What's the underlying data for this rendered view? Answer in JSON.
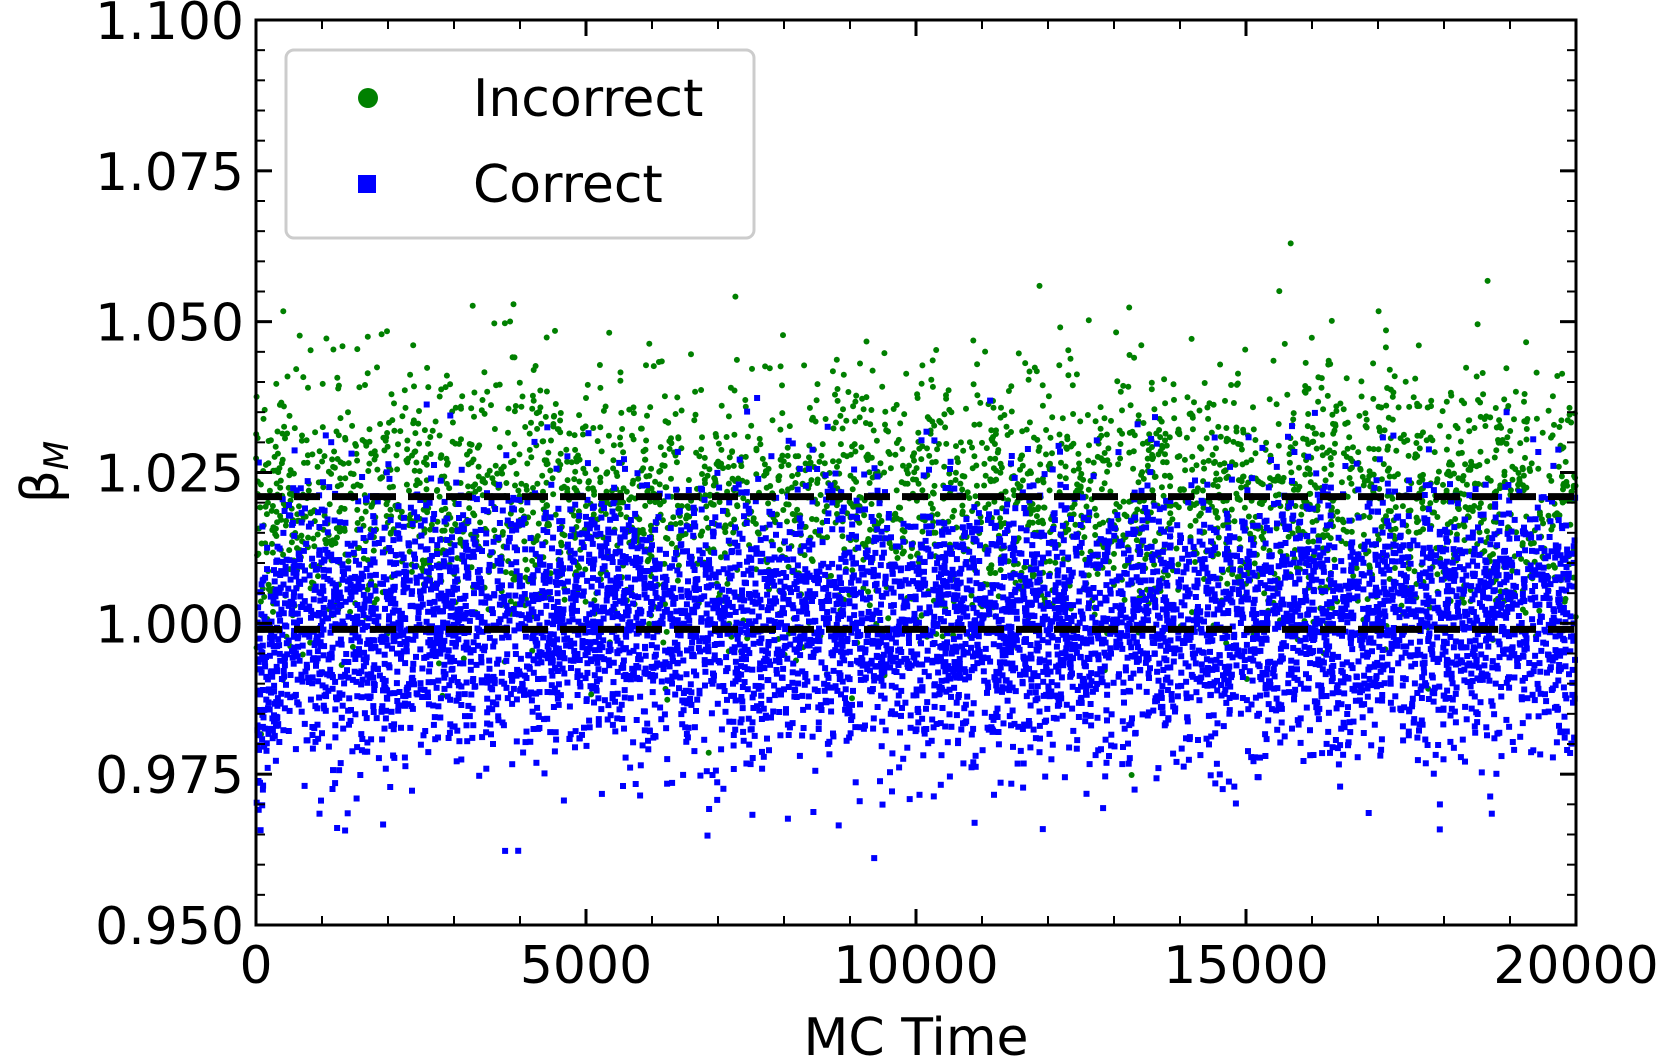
{
  "chart_data": {
    "type": "scatter",
    "xlabel": "MC Time",
    "ylabel_symbol": "β",
    "ylabel_subscript": "M",
    "xlim": [
      0,
      20000
    ],
    "ylim": [
      0.95,
      1.1
    ],
    "x_ticks": [
      0,
      5000,
      10000,
      15000,
      20000
    ],
    "x_tick_labels": [
      "0",
      "5000",
      "10000",
      "15000",
      "20000"
    ],
    "y_ticks": [
      0.95,
      0.975,
      1.0,
      1.025,
      1.05,
      1.075,
      1.1
    ],
    "y_tick_labels": [
      "0.950",
      "0.975",
      "1.000",
      "1.025",
      "1.050",
      "1.075",
      "1.100"
    ],
    "grid": false,
    "legend_position": "top-left",
    "series": [
      {
        "name": "Incorrect",
        "marker": "circle",
        "color": "#008000",
        "distribution": {
          "count": 3200,
          "mean": 1.021,
          "std": 0.011,
          "x_range": [
            0,
            20000
          ]
        }
      },
      {
        "name": "Correct",
        "marker": "square",
        "color": "#0000ff",
        "distribution": {
          "count": 6500,
          "mean": 1.0,
          "std": 0.011,
          "x_range": [
            0,
            20000
          ]
        }
      }
    ],
    "reference_lines": [
      {
        "y": 1.021,
        "style": "dashed",
        "color": "#000000"
      },
      {
        "y": 0.999,
        "style": "dashed",
        "color": "#000000"
      }
    ]
  }
}
